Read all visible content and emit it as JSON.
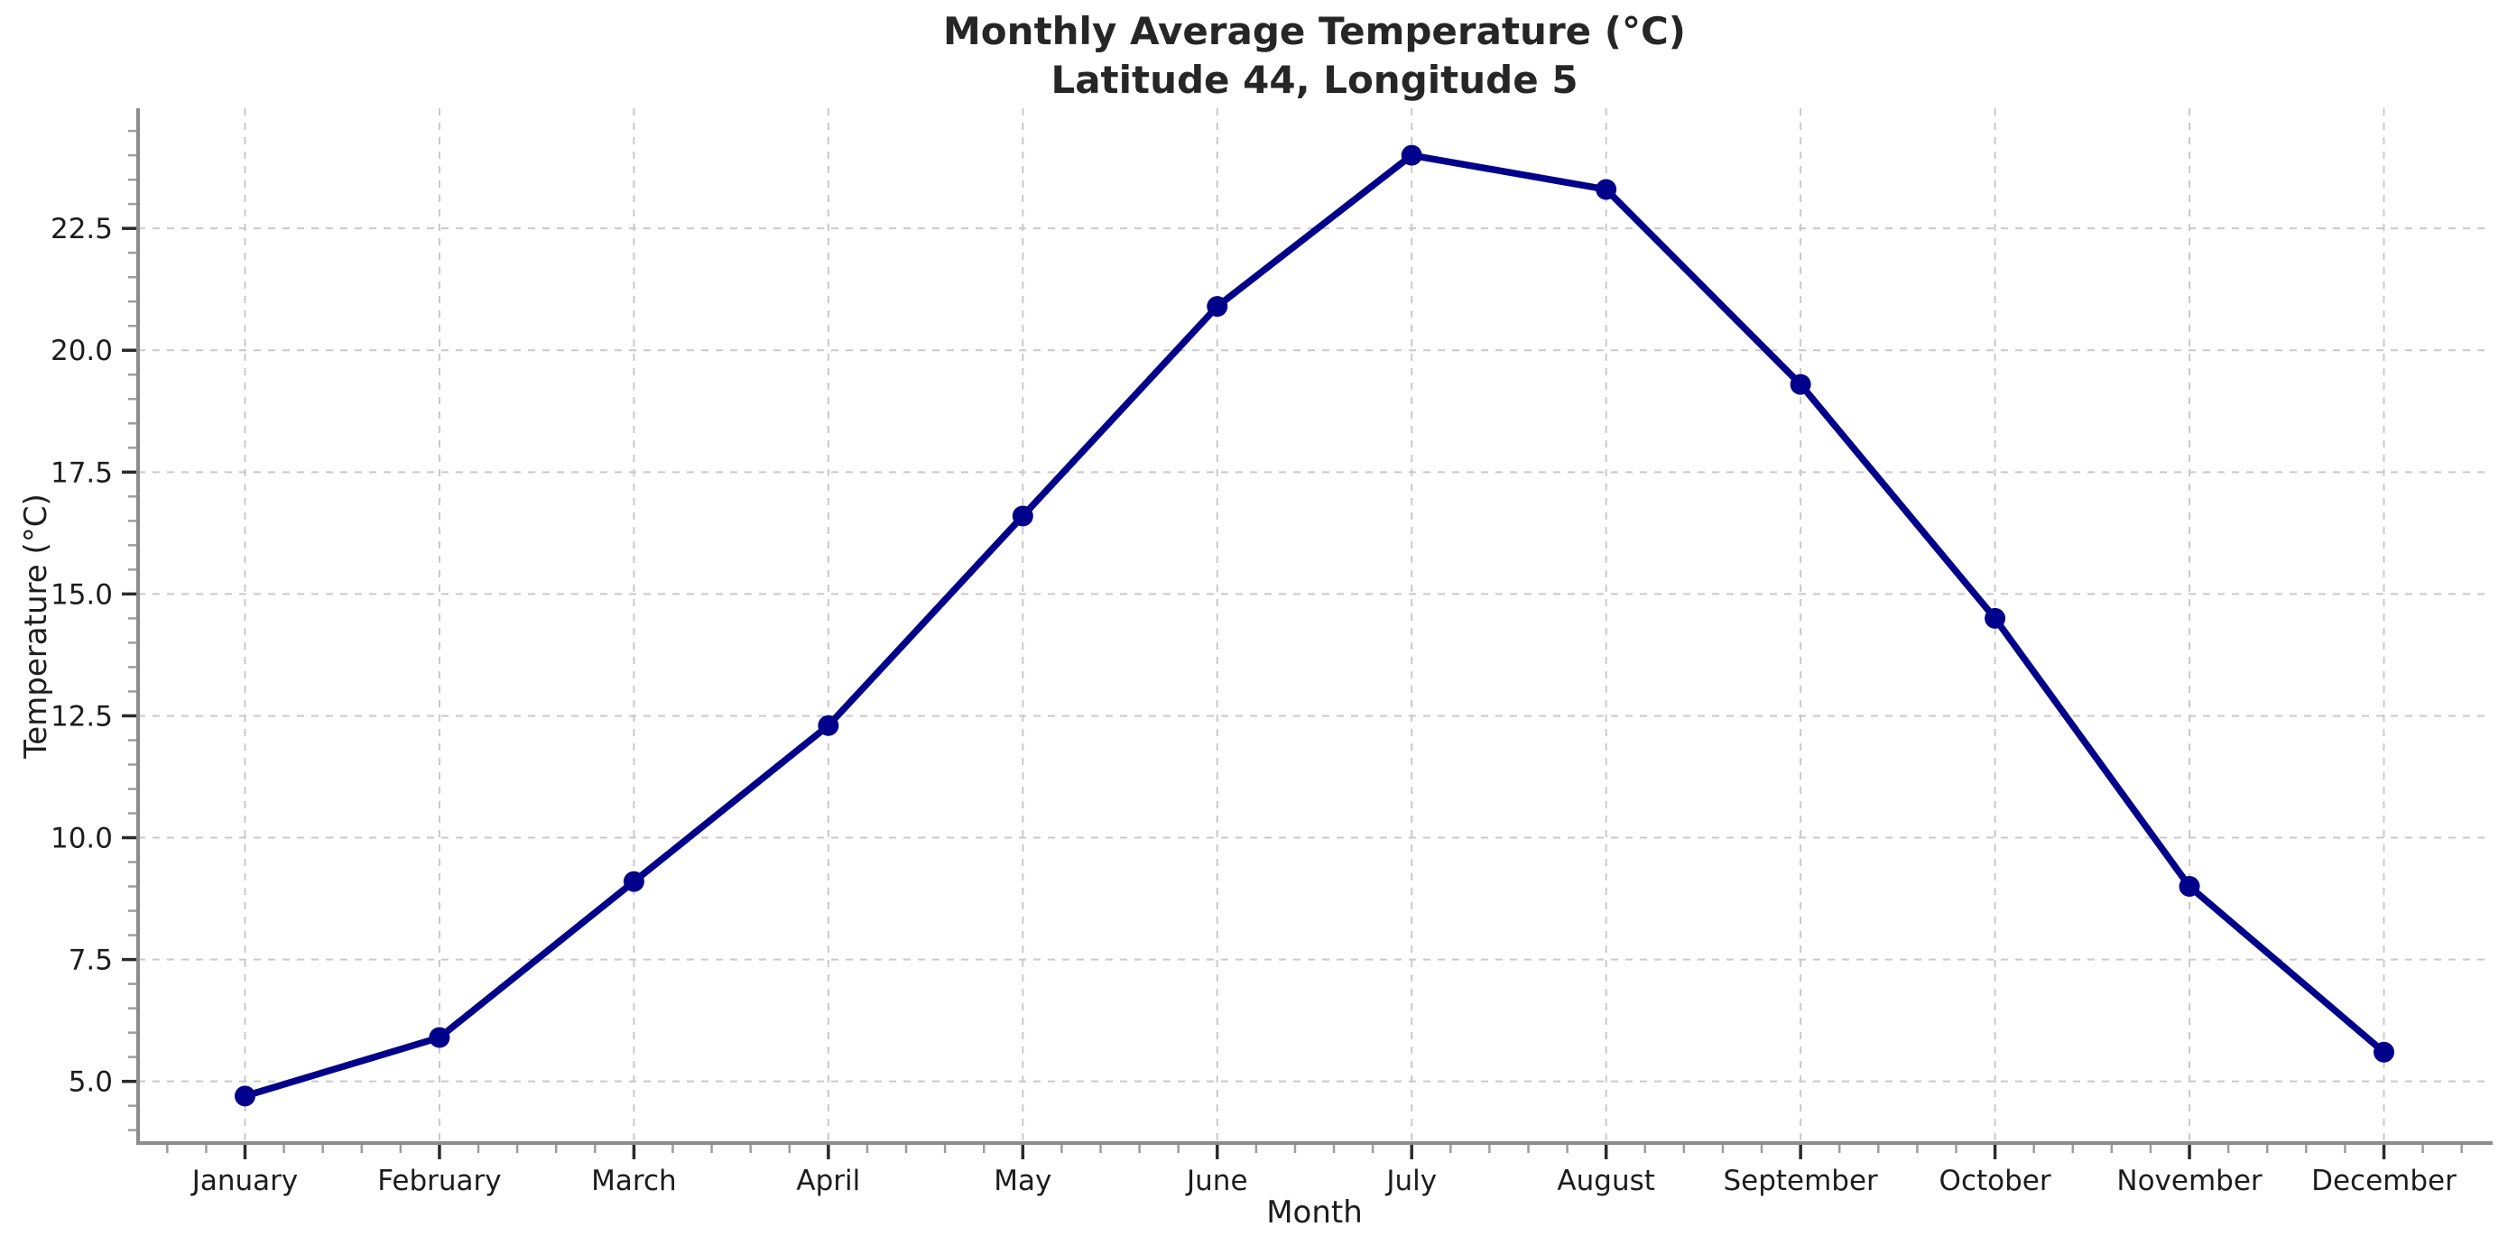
{
  "chart_data": {
    "type": "line",
    "title": "Monthly Average Temperature (°C)",
    "subtitle": "Latitude 44, Longitude 5",
    "xlabel": "Month",
    "ylabel": "Temperature (°C)",
    "categories": [
      "January",
      "February",
      "March",
      "April",
      "May",
      "June",
      "July",
      "August",
      "September",
      "October",
      "November",
      "December"
    ],
    "series": [
      {
        "name": "Monthly Average Temperature (°C)",
        "values": [
          4.7,
          5.9,
          9.1,
          12.3,
          16.6,
          20.9,
          24.0,
          23.3,
          19.3,
          14.5,
          9.0,
          5.6
        ]
      }
    ],
    "yticks": [
      5.0,
      7.5,
      10.0,
      12.5,
      15.0,
      17.5,
      20.0,
      22.5
    ],
    "ytick_labels": [
      "5.0",
      "7.5",
      "10.0",
      "12.5",
      "15.0",
      "17.5",
      "20.0",
      "22.5"
    ],
    "ylim": [
      3.735,
      24.965
    ],
    "xlim": [
      -0.55,
      11.55
    ],
    "y_minor_step": 0.5,
    "x_minor_step": 0.2,
    "grid": "dashed-major",
    "legend": "none",
    "colors": {
      "line": "#00008B",
      "marker": "#00008B",
      "grid": "#c9c9c9",
      "spine": "#8c8c8c",
      "major_tick": "#2b2b2b",
      "minor_tick": "#9c9c9c",
      "text": "#1c1c1c",
      "title": "#262626",
      "background": "#ffffff"
    }
  }
}
